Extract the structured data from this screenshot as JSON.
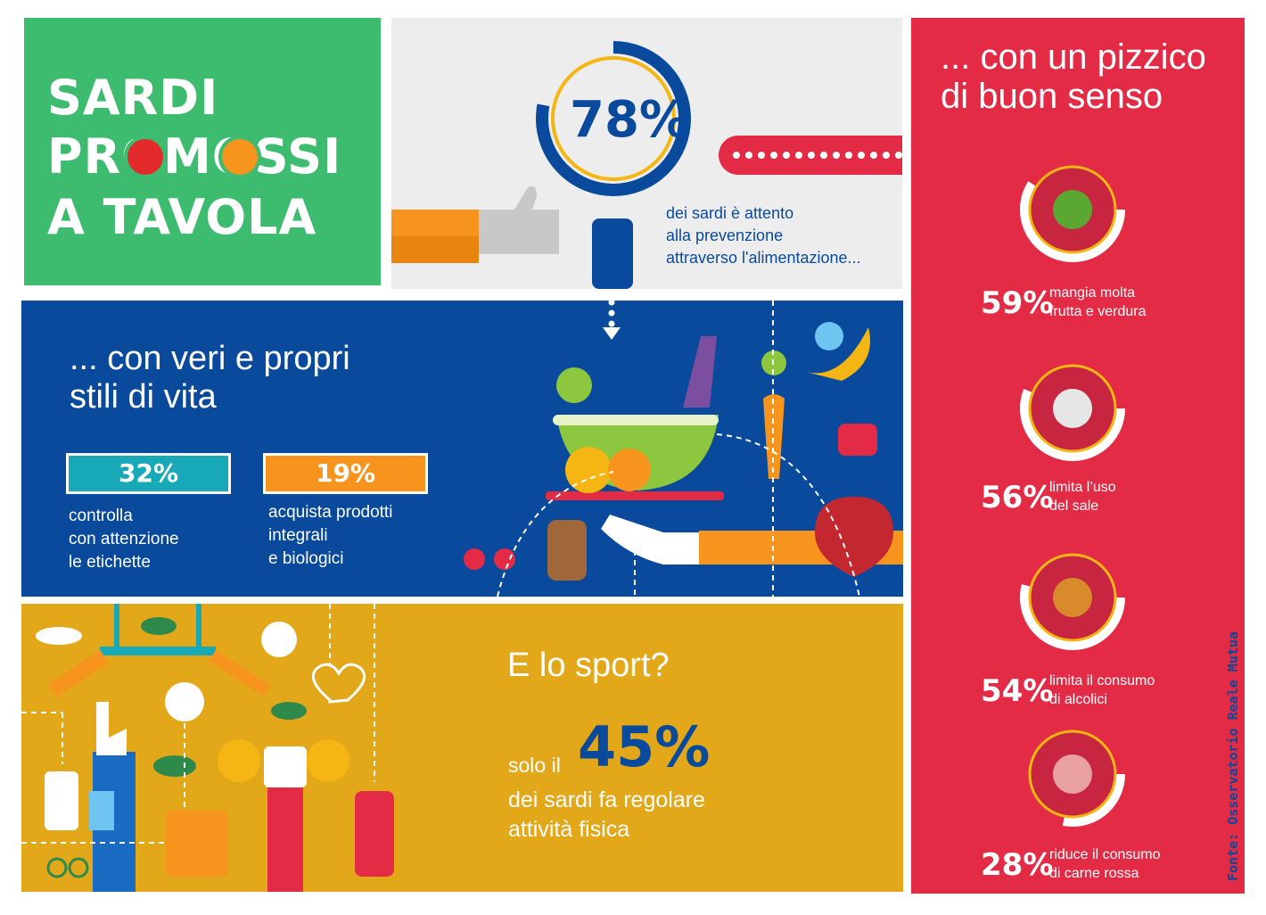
{
  "title": {
    "line1": "SARDI",
    "line2": "PROMOSSI",
    "line3": "A TAVOLA"
  },
  "prevention": {
    "value": "78%",
    "percent": 78,
    "text": [
      "dei sardi  è attento",
      "alla prevenzione",
      "attraverso l'alimentazione..."
    ]
  },
  "lifestyle": {
    "heading": [
      "... con veri e propri",
      "stili di vita"
    ],
    "stats": [
      {
        "value": "32%",
        "text": [
          "controlla",
          "con attenzione",
          "le etichette"
        ],
        "color": "#17a9b8"
      },
      {
        "value": "19%",
        "text": [
          "acquista prodotti",
          "integrali",
          "e biologici"
        ],
        "color": "#f7941d"
      }
    ]
  },
  "sport": {
    "heading": "E lo sport?",
    "prefix": "solo il",
    "value": "45%",
    "text": [
      "dei sardi fa regolare",
      "attività fisica"
    ]
  },
  "sense": {
    "heading": [
      "... con un pizzico",
      "di buon senso"
    ],
    "items": [
      {
        "value": "59%",
        "percent": 59,
        "icon": "broccoli-icon",
        "text": [
          "mangia molta",
          "frutta e verdura"
        ]
      },
      {
        "value": "56%",
        "percent": 56,
        "icon": "salt-shaker-icon",
        "text": [
          "limita l’uso",
          "del sale"
        ]
      },
      {
        "value": "54%",
        "percent": 54,
        "icon": "bottle-icon",
        "text": [
          "limita il consumo",
          "di alcolici"
        ]
      },
      {
        "value": "28%",
        "percent": 28,
        "icon": "steak-icon",
        "text": [
          "riduce il consumo",
          "di carne rossa"
        ]
      }
    ]
  },
  "source": "Fonte: Osservatorio Reale Mutua",
  "colors": {
    "green": "#3dbb6e",
    "red": "#e32b45",
    "blue": "#0a4a9c",
    "yellow": "#e3a81a",
    "gold": "#f5b614"
  }
}
